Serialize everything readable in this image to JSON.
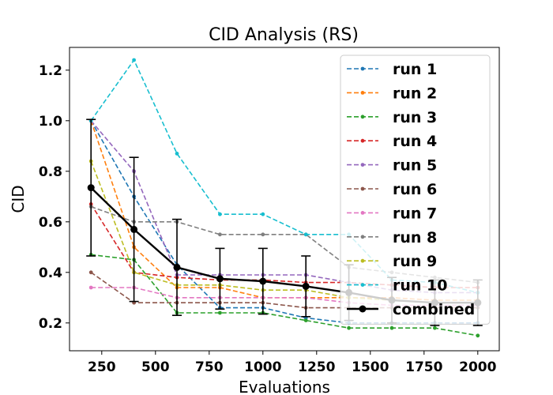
{
  "chart_data": {
    "type": "line",
    "title": "CID Analysis (RS)",
    "xlabel": "Evaluations",
    "ylabel": "CID",
    "xlim": [
      100,
      2100
    ],
    "ylim": [
      0.09,
      1.29
    ],
    "xticks": [
      250,
      500,
      750,
      1000,
      1250,
      1500,
      1750,
      2000
    ],
    "xtick_labels": [
      "250",
      "500",
      "750",
      "1000",
      "1250",
      "1500",
      "1750",
      "2000"
    ],
    "yticks": [
      0.2,
      0.4,
      0.6,
      0.8,
      1.0,
      1.2
    ],
    "ytick_labels": [
      "0.2",
      "0.4",
      "0.6",
      "0.8",
      "1.0",
      "1.2"
    ],
    "grid": false,
    "legend_position": "upper-right",
    "x": [
      200,
      400,
      600,
      800,
      1000,
      1200,
      1400,
      1600,
      1800,
      2000
    ],
    "series": [
      {
        "name": "run 1",
        "color": "#1f77b4",
        "values": [
          1.0,
          0.7,
          0.43,
          0.26,
          0.26,
          0.22,
          0.2,
          0.2,
          0.2,
          0.2
        ]
      },
      {
        "name": "run 2",
        "color": "#ff7f0e",
        "values": [
          1.0,
          0.5,
          0.34,
          0.34,
          0.3,
          0.3,
          0.3,
          0.3,
          0.29,
          0.29
        ]
      },
      {
        "name": "run 3",
        "color": "#2ca02c",
        "values": [
          0.47,
          0.45,
          0.24,
          0.24,
          0.24,
          0.21,
          0.18,
          0.18,
          0.18,
          0.15
        ]
      },
      {
        "name": "run 4",
        "color": "#d62728",
        "values": [
          0.67,
          0.4,
          0.38,
          0.37,
          0.37,
          0.36,
          0.36,
          0.35,
          0.34,
          0.34
        ]
      },
      {
        "name": "run 5",
        "color": "#9467bd",
        "values": [
          1.0,
          0.8,
          0.39,
          0.39,
          0.39,
          0.39,
          0.36,
          0.33,
          0.32,
          0.32
        ]
      },
      {
        "name": "run 6",
        "color": "#8c564b",
        "values": [
          0.4,
          0.28,
          0.28,
          0.28,
          0.28,
          0.26,
          0.26,
          0.26,
          0.26,
          0.26
        ]
      },
      {
        "name": "run 7",
        "color": "#e377c2",
        "values": [
          0.34,
          0.34,
          0.3,
          0.3,
          0.3,
          0.3,
          0.28,
          0.27,
          0.27,
          0.27
        ]
      },
      {
        "name": "run 8",
        "color": "#7f7f7f",
        "values": [
          0.66,
          0.6,
          0.6,
          0.55,
          0.55,
          0.55,
          0.42,
          0.4,
          0.38,
          0.36
        ]
      },
      {
        "name": "run 9",
        "color": "#bcbd22",
        "values": [
          0.84,
          0.4,
          0.35,
          0.35,
          0.33,
          0.33,
          0.3,
          0.29,
          0.28,
          0.28
        ]
      },
      {
        "name": "run 10",
        "color": "#17becf",
        "values": [
          1.0,
          1.24,
          0.87,
          0.63,
          0.63,
          0.55,
          0.55,
          0.37,
          0.36,
          0.32
        ]
      }
    ],
    "combined": {
      "name": "combined",
      "color": "#000000",
      "values": [
        0.735,
        0.57,
        0.42,
        0.375,
        0.365,
        0.345,
        0.32,
        0.29,
        0.28,
        0.28
      ],
      "error": [
        0.27,
        0.285,
        0.19,
        0.12,
        0.13,
        0.12,
        0.11,
        0.09,
        0.09,
        0.09
      ]
    }
  }
}
